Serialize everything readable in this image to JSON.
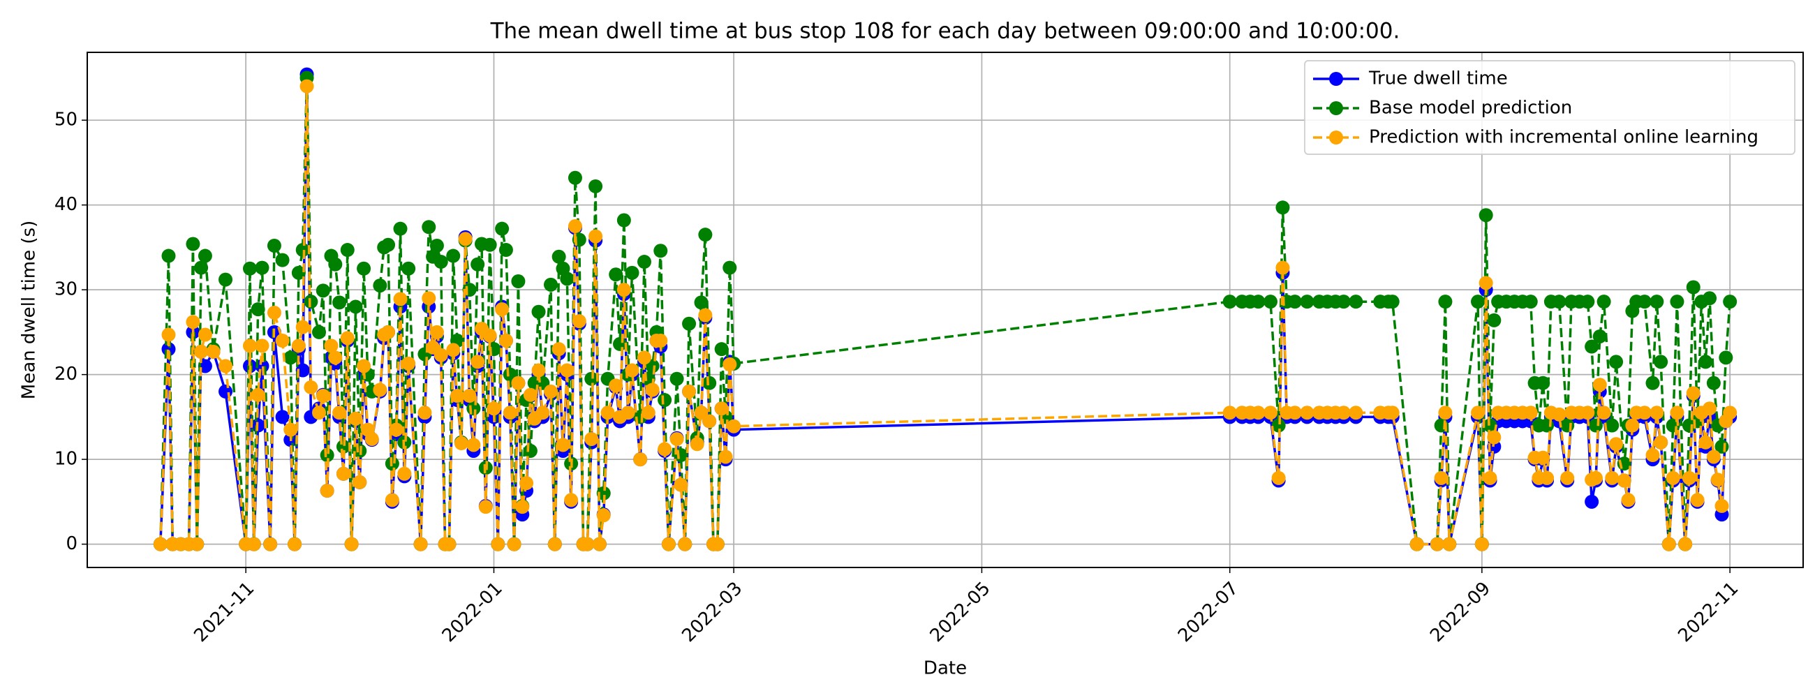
{
  "chart_data": {
    "type": "line",
    "title": "The mean dwell time at bus stop 108 for each day between 09:00:00 and 10:00:00.",
    "xlabel": "Date",
    "ylabel": "Mean dwell time (s)",
    "xlim": [
      "2021-09-23",
      "2022-11-19"
    ],
    "xticks": [
      "2021-11",
      "2022-01",
      "2022-03",
      "2022-05",
      "2022-07",
      "2022-09",
      "2022-11"
    ],
    "ylim": [
      -2.75,
      58
    ],
    "yticks": [
      0,
      10,
      20,
      30,
      40,
      50
    ],
    "grid": true,
    "legend": "upper right",
    "x": [
      "2021-10-11",
      "2021-10-13",
      "2021-10-14",
      "2021-10-16",
      "2021-10-18",
      "2021-10-19",
      "2021-10-20",
      "2021-10-21",
      "2021-10-22",
      "2021-10-24",
      "2021-10-27",
      "2021-11-01",
      "2021-11-02",
      "2021-11-03",
      "2021-11-04",
      "2021-11-05",
      "2021-11-07",
      "2021-11-08",
      "2021-11-10",
      "2021-11-12",
      "2021-11-13",
      "2021-11-14",
      "2021-11-15",
      "2021-11-16",
      "2021-11-17",
      "2021-11-19",
      "2021-11-20",
      "2021-11-21",
      "2021-11-22",
      "2021-11-23",
      "2021-11-24",
      "2021-11-25",
      "2021-11-26",
      "2021-11-27",
      "2021-11-28",
      "2021-11-29",
      "2021-11-30",
      "2021-12-01",
      "2021-12-02",
      "2021-12-04",
      "2021-12-05",
      "2021-12-06",
      "2021-12-07",
      "2021-12-08",
      "2021-12-09",
      "2021-12-10",
      "2021-12-11",
      "2021-12-14",
      "2021-12-15",
      "2021-12-16",
      "2021-12-17",
      "2021-12-18",
      "2021-12-19",
      "2021-12-20",
      "2021-12-21",
      "2021-12-22",
      "2021-12-23",
      "2021-12-24",
      "2021-12-25",
      "2021-12-26",
      "2021-12-27",
      "2021-12-28",
      "2021-12-29",
      "2021-12-30",
      "2021-12-31",
      "2022-01-01",
      "2022-01-02",
      "2022-01-03",
      "2022-01-04",
      "2022-01-05",
      "2022-01-06",
      "2022-01-07",
      "2022-01-08",
      "2022-01-09",
      "2022-01-10",
      "2022-01-11",
      "2022-01-12",
      "2022-01-13",
      "2022-01-15",
      "2022-01-16",
      "2022-01-17",
      "2022-01-18",
      "2022-01-19",
      "2022-01-20",
      "2022-01-21",
      "2022-01-22",
      "2022-01-23",
      "2022-01-24",
      "2022-01-25",
      "2022-01-26",
      "2022-01-27",
      "2022-01-28",
      "2022-01-29",
      "2022-01-31",
      "2022-02-01",
      "2022-02-02",
      "2022-02-03",
      "2022-02-04",
      "2022-02-06",
      "2022-02-07",
      "2022-02-08",
      "2022-02-09",
      "2022-02-10",
      "2022-02-11",
      "2022-02-12",
      "2022-02-13",
      "2022-02-15",
      "2022-02-16",
      "2022-02-17",
      "2022-02-18",
      "2022-02-20",
      "2022-02-21",
      "2022-02-22",
      "2022-02-23",
      "2022-02-24",
      "2022-02-25",
      "2022-02-26",
      "2022-02-27",
      "2022-02-28",
      "2022-03-01",
      "2022-07-01",
      "2022-07-04",
      "2022-07-06",
      "2022-07-08",
      "2022-07-11",
      "2022-07-13",
      "2022-07-14",
      "2022-07-15",
      "2022-07-17",
      "2022-07-20",
      "2022-07-23",
      "2022-07-25",
      "2022-07-27",
      "2022-07-29",
      "2022-08-01",
      "2022-08-07",
      "2022-08-09",
      "2022-08-10",
      "2022-08-16",
      "2022-08-21",
      "2022-08-22",
      "2022-08-23",
      "2022-08-24",
      "2022-08-31",
      "2022-09-01",
      "2022-09-02",
      "2022-09-03",
      "2022-09-04",
      "2022-09-05",
      "2022-09-07",
      "2022-09-09",
      "2022-09-11",
      "2022-09-13",
      "2022-09-14",
      "2022-09-15",
      "2022-09-16",
      "2022-09-17",
      "2022-09-18",
      "2022-09-20",
      "2022-09-22",
      "2022-09-23",
      "2022-09-25",
      "2022-09-27",
      "2022-09-28",
      "2022-09-29",
      "2022-09-30",
      "2022-10-01",
      "2022-10-03",
      "2022-10-04",
      "2022-10-06",
      "2022-10-07",
      "2022-10-08",
      "2022-10-09",
      "2022-10-11",
      "2022-10-13",
      "2022-10-14",
      "2022-10-15",
      "2022-10-17",
      "2022-10-18",
      "2022-10-19",
      "2022-10-21",
      "2022-10-22",
      "2022-10-23",
      "2022-10-24",
      "2022-10-25",
      "2022-10-26",
      "2022-10-27",
      "2022-10-28",
      "2022-10-29",
      "2022-10-30",
      "2022-10-31",
      "2022-11-01"
    ],
    "series": [
      {
        "name": "True dwell time",
        "color": "#0000ff",
        "linestyle": "solid",
        "values": [
          0,
          23,
          0,
          0,
          0,
          25,
          0,
          22.7,
          21,
          22.7,
          18,
          0,
          21,
          0,
          14,
          21,
          0,
          25,
          15,
          12.3,
          0,
          23,
          20.5,
          55.4,
          15,
          16,
          17.6,
          6.3,
          22,
          21.3,
          15,
          8.3,
          24,
          0,
          14.5,
          7.3,
          20,
          13,
          12.3,
          18,
          24.3,
          25,
          5,
          13,
          28,
          8,
          21,
          0,
          15,
          28,
          23,
          24.5,
          22,
          0,
          0,
          22.5,
          17,
          12,
          36.2,
          17,
          11,
          21,
          25,
          4.5,
          24.5,
          15,
          0,
          28,
          24,
          15,
          0,
          19,
          3.5,
          6.3,
          17.5,
          14.5,
          20,
          15,
          17.7,
          0,
          22.5,
          11,
          20,
          5,
          37.3,
          26,
          0,
          0,
          12,
          35.8,
          0,
          3.5,
          15,
          18.5,
          14.5,
          29.5,
          15,
          20,
          10,
          21.5,
          15,
          18,
          24,
          23.3,
          11,
          0,
          12.5,
          7,
          0,
          18,
          12,
          15.5,
          26.7,
          14.5,
          0,
          0,
          16,
          10,
          21.5,
          13.5,
          15,
          15,
          15,
          15,
          15,
          7.5,
          32,
          15,
          15,
          15,
          15,
          15,
          15,
          15,
          15,
          15,
          15,
          15,
          0,
          0,
          7.5,
          15,
          0,
          15,
          0,
          30,
          7.5,
          11.5,
          14.5,
          14.5,
          14.5,
          14.5,
          14.5,
          10,
          7.5,
          10,
          7.5,
          15,
          14.5,
          7.5,
          15,
          15,
          15,
          5,
          7.5,
          18,
          15,
          7.5,
          11.5,
          7.5,
          5,
          13.5,
          15,
          15,
          10,
          15,
          12,
          0,
          7.5,
          15,
          0,
          7.5,
          17.5,
          5,
          15,
          11.5,
          15,
          10,
          7.5,
          3.5,
          14.5,
          15
        ]
      },
      {
        "name": "Base model prediction",
        "color": "#008000",
        "linestyle": "dashed",
        "values": [
          0,
          34,
          0,
          0,
          0,
          35.4,
          0,
          32.6,
          34,
          23,
          31.2,
          0,
          32.5,
          0,
          27.7,
          32.6,
          0,
          35.2,
          33.5,
          22,
          0,
          32,
          34.7,
          55,
          28.6,
          25,
          29.9,
          10.5,
          34,
          33,
          28.5,
          11.5,
          34.7,
          0,
          28,
          11,
          32.5,
          20,
          18,
          30.5,
          35,
          35.3,
          9.5,
          14,
          37.2,
          12,
          32.5,
          0,
          22.4,
          37.4,
          33.9,
          35.2,
          33.3,
          0,
          0,
          34,
          24,
          12,
          35.8,
          30,
          16,
          33,
          35.4,
          9,
          35.3,
          23,
          0,
          37.2,
          34.7,
          20,
          0,
          31,
          4.5,
          17,
          11,
          19,
          27.4,
          19,
          30.6,
          0,
          33.9,
          32.5,
          31.3,
          9.5,
          43.2,
          35.9,
          0,
          0,
          19.5,
          42.2,
          0,
          6,
          19.5,
          31.8,
          23.6,
          38.2,
          20,
          32,
          15,
          33.3,
          19.5,
          21,
          25,
          34.6,
          17,
          0,
          19.5,
          10.5,
          0,
          26,
          12.5,
          28.5,
          36.5,
          19,
          0,
          0,
          23,
          15,
          32.6,
          21.3,
          28.6,
          28.6,
          28.6,
          28.6,
          28.6,
          14,
          39.7,
          28.6,
          28.6,
          28.6,
          28.6,
          28.6,
          28.6,
          28.6,
          28.6,
          28.6,
          28.6,
          28.6,
          0,
          0,
          14,
          28.6,
          0,
          28.6,
          0,
          38.8,
          14,
          26.4,
          28.6,
          28.6,
          28.6,
          28.6,
          28.6,
          19,
          14,
          19,
          14,
          28.6,
          28.6,
          14,
          28.6,
          28.6,
          28.6,
          23.3,
          14,
          24.5,
          28.6,
          14,
          21.5,
          9.5,
          14,
          27.5,
          28.6,
          28.6,
          19,
          28.6,
          21.5,
          0,
          14,
          28.6,
          0,
          14,
          30.3,
          14.5,
          28.6,
          21.5,
          29,
          19,
          14,
          11.5,
          22,
          28.6
        ]
      },
      {
        "name": "Prediction with incremental online learning",
        "color": "#ffa500",
        "linestyle": "dashed",
        "values": [
          0,
          24.7,
          0,
          0,
          0,
          26.2,
          0,
          22.7,
          24.7,
          22.7,
          21,
          0,
          23.4,
          0,
          17.6,
          23.4,
          0,
          27.3,
          24,
          13.5,
          0,
          23.4,
          25.6,
          54,
          18.5,
          15.5,
          17.5,
          6.3,
          23.4,
          22,
          15.5,
          8.3,
          24.3,
          0,
          14.8,
          7.3,
          21,
          13.5,
          12.4,
          18.2,
          24.7,
          25,
          5.2,
          13.5,
          28.9,
          8.3,
          21.3,
          0,
          15.5,
          29,
          23.2,
          25,
          22.3,
          0,
          0,
          22.9,
          17.5,
          11.9,
          36,
          17.5,
          11.7,
          21.5,
          25.4,
          4.4,
          24.6,
          16,
          0,
          27.7,
          24,
          15.5,
          0,
          19,
          4.4,
          7.2,
          17.6,
          14.8,
          20.5,
          15.5,
          18,
          0,
          23,
          11.7,
          20.5,
          5.2,
          37.5,
          26.3,
          0,
          0,
          12.4,
          36.3,
          0,
          3.4,
          15.5,
          18.7,
          15,
          30,
          15.5,
          20.5,
          10,
          22,
          15.5,
          18.2,
          24,
          24,
          11.2,
          0,
          12.4,
          7,
          0,
          18,
          11.8,
          15.5,
          27,
          14.5,
          0,
          0,
          16,
          10.3,
          21.2,
          13.9,
          15.5,
          15.5,
          15.5,
          15.5,
          15.5,
          7.8,
          32.6,
          15.5,
          15.5,
          15.5,
          15.5,
          15.5,
          15.5,
          15.5,
          15.5,
          15.5,
          15.5,
          15.5,
          0,
          0,
          7.8,
          15.5,
          0,
          15.5,
          0,
          30.8,
          7.8,
          12.6,
          15.5,
          15.5,
          15.5,
          15.5,
          15.5,
          10.2,
          7.8,
          10.2,
          7.8,
          15.5,
          15.3,
          7.8,
          15.5,
          15.5,
          15.5,
          7.6,
          7.8,
          18.8,
          15.5,
          7.8,
          11.8,
          7.5,
          5.2,
          14,
          15.5,
          15.5,
          10.5,
          15.5,
          12,
          0,
          7.8,
          15.5,
          0,
          7.8,
          17.8,
          5.2,
          15.5,
          12,
          16,
          10.3,
          7.6,
          4.5,
          14.5,
          15.5
        ]
      }
    ]
  }
}
